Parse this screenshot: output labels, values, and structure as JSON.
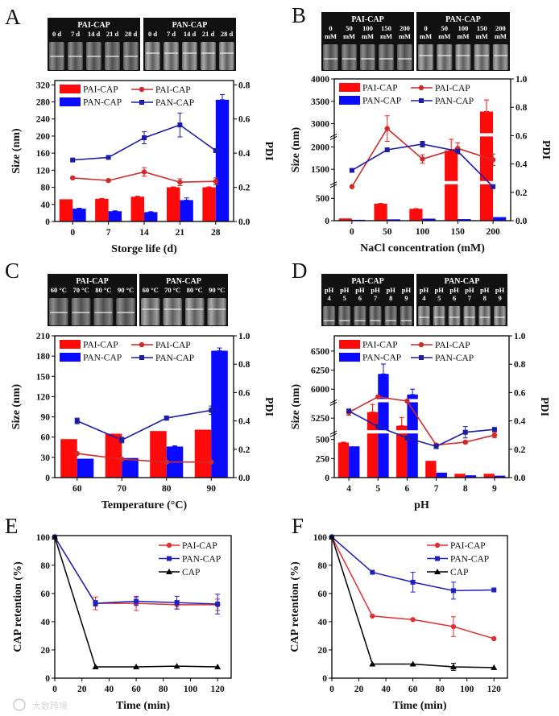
{
  "panels": [
    {
      "letter": "A",
      "photo": {
        "groups": [
          "PAI-CAP",
          "PAN-CAP"
        ],
        "labels": [
          [
            "0 d"
          ],
          [
            "7 d"
          ],
          [
            "14 d"
          ],
          [
            "21 d"
          ],
          [
            "28 d"
          ]
        ]
      }
    },
    {
      "letter": "B",
      "photo": {
        "groups": [
          "PAI-CAP",
          "PAN-CAP"
        ],
        "labels": [
          [
            "0",
            "mM"
          ],
          [
            "50",
            "mM"
          ],
          [
            "100",
            "mM"
          ],
          [
            "150",
            "mM"
          ],
          [
            "200",
            "mM"
          ]
        ]
      }
    },
    {
      "letter": "C",
      "photo": {
        "groups": [
          "PAI-CAP",
          "PAN-CAP"
        ],
        "labels": [
          [
            "60 °C"
          ],
          [
            "70 °C"
          ],
          [
            "80 °C"
          ],
          [
            "90 °C"
          ]
        ]
      }
    },
    {
      "letter": "D",
      "photo": {
        "groups": [
          "PAI-CAP",
          "PAN-CAP"
        ],
        "labels": [
          [
            "pH",
            "4"
          ],
          [
            "pH",
            "5"
          ],
          [
            "pH",
            "6"
          ],
          [
            "pH",
            "7"
          ],
          [
            "pH",
            "8"
          ],
          [
            "pH",
            "9"
          ]
        ]
      }
    },
    {
      "letter": "E"
    },
    {
      "letter": "F"
    }
  ],
  "watermark": "大数跨境",
  "chart_data": [
    {
      "type": "bar+line",
      "categories": [
        "0",
        "7",
        "14",
        "21",
        "28"
      ],
      "xlabel": "Storge life (d)",
      "ylabel": "Size (nm)",
      "y2label": "PDI",
      "ylim": [
        0,
        330
      ],
      "yticks": [
        "0",
        "40",
        "80",
        "120",
        "160",
        "200",
        "240",
        "280",
        "320"
      ],
      "y2lim": [
        0,
        0.825
      ],
      "y2ticks": [
        "0.0",
        "0.2",
        "0.4",
        "0.6",
        "0.8"
      ],
      "legend": "top-left",
      "bar_series": [
        {
          "name": "PAI-CAP",
          "color": "#ff0a0a",
          "values": [
            52,
            53,
            58,
            80,
            80
          ],
          "err": [
            0,
            1,
            1,
            1,
            1
          ]
        },
        {
          "name": "PAN-CAP",
          "color": "#0a0aff",
          "values": [
            30,
            24,
            22,
            50,
            285
          ],
          "err": [
            1,
            1,
            1,
            5,
            12
          ]
        }
      ],
      "line_series": [
        {
          "name": "PAI-CAP",
          "color": "#d02a2a",
          "marker": "circle",
          "values": [
            0.255,
            0.24,
            0.29,
            0.23,
            0.235
          ],
          "err": [
            0.005,
            0.005,
            0.025,
            0.02,
            0.02
          ]
        },
        {
          "name": "PAN-CAP",
          "color": "#1c1ca8",
          "marker": "square",
          "values": [
            0.36,
            0.375,
            0.49,
            0.565,
            0.415
          ],
          "err": [
            0.005,
            0.01,
            0.035,
            0.07,
            0.01
          ]
        }
      ]
    },
    {
      "type": "bar+line",
      "categories": [
        "0",
        "50",
        "100",
        "150",
        "200"
      ],
      "xlabel": "NaCl concentration (mM)",
      "ylabel": "Size (nm)",
      "y2label": "PDI",
      "y_segments": [
        [
          0,
          850
        ],
        [
          1200,
          2270
        ],
        [
          2750,
          4000
        ]
      ],
      "yticks": [
        "0",
        "500",
        "1500",
        "2000",
        "3000",
        "3500",
        "4000"
      ],
      "y2lim": [
        0,
        1.0
      ],
      "y2ticks": [
        "0.0",
        "0.2",
        "0.4",
        "0.6",
        "0.8",
        "1.0"
      ],
      "legend": "top-left",
      "bar_series": [
        {
          "name": "PAI-CAP",
          "color": "#ff0a0a",
          "values": [
            50,
            380,
            265,
            1920,
            3270
          ],
          "err": [
            0,
            5,
            5,
            250,
            260
          ]
        },
        {
          "name": "PAN-CAP",
          "color": "#0a0aff",
          "values": [
            20,
            30,
            45,
            35,
            80
          ],
          "err": [
            0,
            0,
            0,
            0,
            0
          ]
        }
      ],
      "line_series": [
        {
          "name": "PAI-CAP",
          "color": "#d02a2a",
          "marker": "circle",
          "values": [
            0.24,
            0.65,
            0.435,
            0.51,
            0.43
          ],
          "err": [
            0,
            0.09,
            0.03,
            0.04,
            0.04
          ]
        },
        {
          "name": "PAN-CAP",
          "color": "#1c1ca8",
          "marker": "square",
          "values": [
            0.355,
            0.5,
            0.54,
            0.49,
            0.24
          ],
          "err": [
            0,
            0,
            0.02,
            0,
            0
          ]
        }
      ]
    },
    {
      "type": "bar+line",
      "categories": [
        "60",
        "70",
        "80",
        "90"
      ],
      "xlabel": "Temperature (°C)",
      "ylabel": "Size (nm)",
      "y2label": "PDI",
      "ylim": [
        0,
        210
      ],
      "yticks": [
        "0",
        "30",
        "60",
        "90",
        "120",
        "150",
        "180",
        "210"
      ],
      "y2lim": [
        0,
        1.0
      ],
      "y2ticks": [
        "0.0",
        "0.2",
        "0.4",
        "0.6",
        "0.8",
        "1.0"
      ],
      "legend": "top-left",
      "bar_series": [
        {
          "name": "PAI-CAP",
          "color": "#ff0a0a",
          "values": [
            57,
            65,
            69,
            71
          ],
          "err": [
            0,
            0,
            0,
            0
          ]
        },
        {
          "name": "PAN-CAP",
          "color": "#0a0aff",
          "values": [
            28,
            29,
            46,
            188
          ],
          "err": [
            0,
            0,
            1,
            4
          ]
        }
      ],
      "line_series": [
        {
          "name": "PAI-CAP",
          "color": "#d02a2a",
          "marker": "circle",
          "values": [
            0.17,
            0.13,
            0.11,
            0.11
          ],
          "err": [
            0,
            0,
            0,
            0
          ]
        },
        {
          "name": "PAN-CAP",
          "color": "#1c1ca8",
          "marker": "square",
          "values": [
            0.4,
            0.265,
            0.42,
            0.475
          ],
          "err": [
            0.02,
            0.02,
            0.015,
            0.03
          ]
        }
      ]
    },
    {
      "type": "bar+line",
      "categories": [
        "4",
        "5",
        "6",
        "7",
        "8",
        "9"
      ],
      "xlabel": "pH",
      "ylabel": "Size (nm)",
      "y2label": "PDI",
      "y_segments": [
        [
          0,
          600
        ],
        [
          5070,
          5480
        ],
        [
          5850,
          6700
        ]
      ],
      "yticks": [
        "0",
        "250",
        "500",
        "5250",
        "6000",
        "6250",
        "6500"
      ],
      "y2lim": [
        0,
        1.0
      ],
      "y2ticks": [
        "0.0",
        "0.2",
        "0.4",
        "0.6",
        "0.8",
        "1.0"
      ],
      "legend": "top-left",
      "bar_series": [
        {
          "name": "PAI-CAP",
          "color": "#ff0a0a",
          "values": [
            460,
            5330,
            5150,
            220,
            50,
            50
          ],
          "err": [
            5,
            100,
            110,
            0,
            0,
            0
          ]
        },
        {
          "name": "PAN-CAP",
          "color": "#0a0aff",
          "values": [
            410,
            6200,
            5930,
            65,
            30,
            25
          ],
          "err": [
            0,
            130,
            70,
            0,
            0,
            0
          ]
        }
      ],
      "line_series": [
        {
          "name": "PAI-CAP",
          "color": "#d02a2a",
          "marker": "circle",
          "values": [
            0.46,
            0.57,
            0.54,
            0.23,
            0.25,
            0.3
          ],
          "err": [
            0.02,
            0,
            0,
            0.01,
            0.01,
            0.02
          ]
        },
        {
          "name": "PAN-CAP",
          "color": "#1c1ca8",
          "marker": "square",
          "values": [
            0.47,
            0.36,
            0.28,
            0.22,
            0.32,
            0.34
          ],
          "err": [
            0.01,
            0,
            0,
            0.015,
            0.04,
            0
          ]
        }
      ]
    },
    {
      "type": "line",
      "x": [
        0,
        30,
        60,
        90,
        120
      ],
      "xlim": [
        0,
        130
      ],
      "xticks": [
        "0",
        "20",
        "40",
        "60",
        "80",
        "100",
        "120"
      ],
      "ylim": [
        0,
        101
      ],
      "yticks": [
        "0",
        "20",
        "40",
        "60",
        "80",
        "100"
      ],
      "xlabel": "Time (min)",
      "ylabel": "CAP retention (%)",
      "legend": "top-right",
      "series": [
        {
          "name": "PAI-CAP",
          "color": "#e03030",
          "marker": "circle",
          "values": [
            100,
            53,
            53,
            52,
            52
          ],
          "err": [
            0,
            4.5,
            5,
            3,
            4
          ]
        },
        {
          "name": "PAN-CAP",
          "color": "#2020c0",
          "marker": "square",
          "values": [
            100,
            53,
            54.5,
            53.5,
            52.5
          ],
          "err": [
            0,
            2,
            3,
            4.5,
            7
          ]
        },
        {
          "name": "CAP",
          "color": "#000000",
          "marker": "triangle",
          "values": [
            100,
            8,
            8,
            8.5,
            8
          ],
          "err": [
            0,
            0,
            0,
            0,
            0
          ]
        }
      ]
    },
    {
      "type": "line",
      "x": [
        0,
        30,
        60,
        90,
        120
      ],
      "xlim": [
        0,
        130
      ],
      "xticks": [
        "0",
        "20",
        "40",
        "60",
        "80",
        "100",
        "120"
      ],
      "ylim": [
        0,
        101
      ],
      "yticks": [
        "0",
        "20",
        "40",
        "60",
        "80",
        "100"
      ],
      "xlabel": "Time (min)",
      "ylabel": "CAP retention (%)",
      "legend": "top-right",
      "series": [
        {
          "name": "PAI-CAP",
          "color": "#e03030",
          "marker": "circle",
          "values": [
            100,
            44,
            41.5,
            36.5,
            28
          ],
          "err": [
            0,
            0,
            0,
            7,
            0
          ]
        },
        {
          "name": "PAN-CAP",
          "color": "#2020c0",
          "marker": "square",
          "values": [
            100,
            75,
            68,
            62,
            62.5
          ],
          "err": [
            0,
            0,
            7,
            6,
            0
          ]
        },
        {
          "name": "CAP",
          "color": "#000000",
          "marker": "triangle",
          "values": [
            100,
            10,
            10,
            8,
            7.5
          ],
          "err": [
            0,
            0,
            0,
            2.5,
            0
          ]
        }
      ]
    }
  ]
}
